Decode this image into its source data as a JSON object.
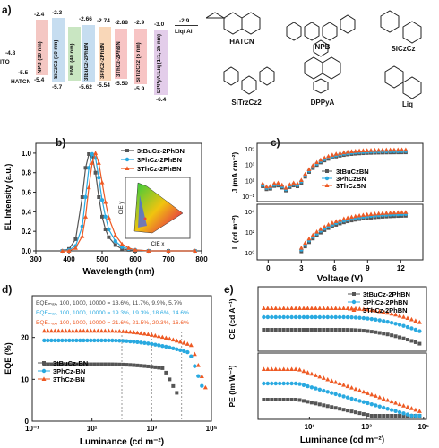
{
  "panels": {
    "a": "a)",
    "b": "b)",
    "c": "c)",
    "d": "d)",
    "e": "e)"
  },
  "energy_diagram": {
    "layers": [
      {
        "name": "ITO",
        "top": "-4.8",
        "bottom": "",
        "color": "#ffffff"
      },
      {
        "name": "HATCN",
        "top": "",
        "bottom": "-5.5",
        "color": "#ffffff"
      },
      {
        "name": "NPB (30 nm)",
        "top": "-2.4",
        "bottom": "-5.4",
        "color": "#f4c7c3"
      },
      {
        "name": "SiCzCz (10 nm)",
        "top": "-2.3",
        "bottom": "-5.7",
        "color": "#c6ddf0"
      },
      {
        "name": "EML (40 nm)",
        "top": "",
        "bottom": "",
        "color": "#c9e6c2"
      },
      {
        "name": "3tBuCz-2PhBN",
        "top": "-2.66",
        "bottom": "-5.62",
        "color": "#c6ddf0"
      },
      {
        "name": "3PhCz-2PhBN",
        "top": "-2.74",
        "bottom": "-5.54",
        "color": "#f9d7b8"
      },
      {
        "name": "3ThCz-2PhBN",
        "top": "-2.88",
        "bottom": "-5.50",
        "color": "#f7c4c4"
      },
      {
        "name": "SiTrzCz2 (5 nm)",
        "top": "-2.9",
        "bottom": "-5.9",
        "color": "#f7c4c4"
      },
      {
        "name": "DPPyA:Liq (1:1, 25 nm)",
        "top": "-3.0",
        "bottom": "-6.4",
        "color": "#e3cdea"
      },
      {
        "name": "Liq/ Al",
        "top": "-2.9",
        "bottom": "",
        "color": "#ffffff"
      }
    ]
  },
  "molecules": [
    "HATCN",
    "NPB",
    "SiCzCz",
    "SiTrzCz2",
    "DPPyA",
    "Liq"
  ],
  "chart_data": [
    {
      "type": "line",
      "panel": "b",
      "xlabel": "Wavelength (nm)",
      "ylabel": "EL Intensity (a.u.)",
      "xlim": [
        300,
        800
      ],
      "ylim": [
        0,
        1.1
      ],
      "xticks": [
        "300",
        "400",
        "500",
        "600",
        "700",
        "800"
      ],
      "yticks": [
        "0.0",
        "0.2",
        "0.4",
        "0.6",
        "0.8",
        "1.0"
      ],
      "legend": "top-right",
      "inset": {
        "xlabel": "CIE x",
        "ylabel": "CIE y"
      },
      "x": [
        380,
        400,
        420,
        440,
        450,
        460,
        470,
        480,
        490,
        500,
        510,
        520,
        540,
        560,
        580,
        600,
        640,
        700,
        780
      ],
      "series": [
        {
          "name": "3tBuCz-2PhBN",
          "color": "#555555",
          "values": [
            0,
            0.02,
            0.12,
            0.55,
            0.85,
            0.99,
            0.97,
            0.8,
            0.55,
            0.35,
            0.22,
            0.14,
            0.06,
            0.02,
            0.01,
            0,
            0,
            0,
            0
          ]
        },
        {
          "name": "3PhCz-2PhBN",
          "color": "#29a9e0",
          "values": [
            0,
            0.01,
            0.05,
            0.25,
            0.55,
            0.85,
            0.99,
            0.95,
            0.75,
            0.52,
            0.35,
            0.22,
            0.1,
            0.04,
            0.02,
            0.01,
            0,
            0,
            0
          ]
        },
        {
          "name": "3ThCz-2PhBN",
          "color": "#ee5a24",
          "values": [
            0,
            0,
            0.03,
            0.15,
            0.35,
            0.65,
            0.9,
            1.0,
            0.9,
            0.7,
            0.5,
            0.34,
            0.16,
            0.07,
            0.03,
            0.01,
            0,
            0,
            0
          ]
        }
      ]
    },
    {
      "type": "scatter",
      "panel": "c",
      "xlabel": "Voltage (V)",
      "ylabel_top": "J (mA cm⁻²)",
      "ylabel_bottom": "L (cd m⁻²)",
      "xlim": [
        -1,
        14
      ],
      "xticks": [
        "0",
        "3",
        "6",
        "9",
        "12"
      ],
      "yticks_top": [
        "10⁵",
        "10³",
        "10¹",
        "10⁻¹"
      ],
      "yticks_bottom": [
        "10⁴",
        "10²",
        "10⁰"
      ],
      "legend": "center",
      "series": [
        {
          "name": "3tBuCzBN",
          "color": "#555555"
        },
        {
          "name": "3PhCzBN",
          "color": "#29a9e0"
        },
        {
          "name": "3ThCzBN",
          "color": "#ee5a24"
        }
      ]
    },
    {
      "type": "scatter",
      "panel": "d",
      "xlabel": "Luminance (cd m⁻²)",
      "ylabel": "EQE (%)",
      "xscale": "log",
      "xlim": [
        0.1,
        100000
      ],
      "ylim": [
        0,
        30
      ],
      "xticks": [
        "10⁻¹",
        "10¹",
        "10³",
        "10⁵"
      ],
      "yticks": [
        "0",
        "10",
        "20"
      ],
      "legend": "center-left",
      "annotations": [
        {
          "text": "EQEₘₐₓ, 100, 1000, 10000 = 13.6%, 11.7%, 9.9%, 5.7%",
          "color": "#444444"
        },
        {
          "text": "EQEₘₐₓ, 100, 1000, 10000 = 19.3%, 19.3%, 18.6%, 14.6%",
          "color": "#29a9e0"
        },
        {
          "text": "EQEₘₐₓ, 100, 1000, 10000 = 21.6%, 21.5%, 20.3%, 16.6%",
          "color": "#ee5a24"
        }
      ],
      "series": [
        {
          "name": "3tBuCz-BN",
          "color": "#555555"
        },
        {
          "name": "3PhCz-BN",
          "color": "#29a9e0"
        },
        {
          "name": "3ThCz-BN",
          "color": "#ee5a24"
        }
      ]
    },
    {
      "type": "scatter",
      "panel": "e",
      "xlabel": "Luminance (cd m⁻²)",
      "ylabel_top": "CE (cd A⁻¹)",
      "ylabel_bottom": "PE (lm W⁻¹)",
      "xscale": "log",
      "xticks": [
        "10¹",
        "10³",
        "10⁵"
      ],
      "legend": "top-right",
      "series": [
        {
          "name": "3tBuCz-2PhBN",
          "color": "#555555"
        },
        {
          "name": "3PhCz-2PhBN",
          "color": "#29a9e0"
        },
        {
          "name": "3ThCz-2PhBN",
          "color": "#ee5a24"
        }
      ]
    }
  ]
}
